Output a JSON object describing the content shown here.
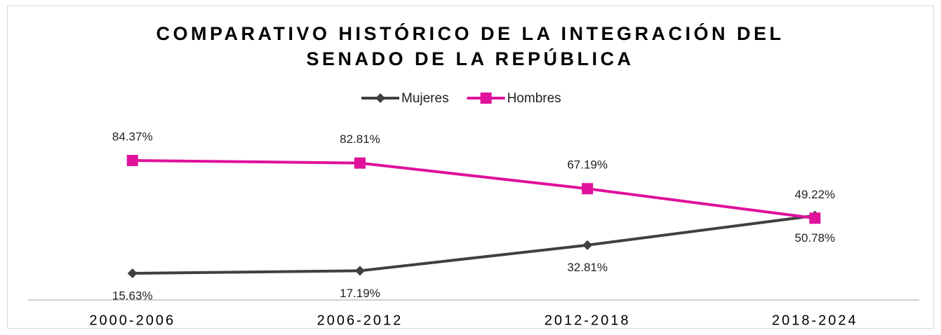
{
  "chart_data": {
    "type": "line",
    "title": "COMPARATIVO HISTÓRICO DE LA INTEGRACIÓN DEL SENADO DE LA REPÚBLICA",
    "categories": [
      "2000-2006",
      "2006-2012",
      "2012-2018",
      "2018-2024"
    ],
    "series": [
      {
        "name": "Mujeres",
        "color": "#404040",
        "marker": "diamond",
        "values": [
          15.63,
          17.19,
          32.81,
          50.78
        ],
        "value_labels": [
          "15.63%",
          "17.19%",
          "32.81%",
          "50.78%"
        ],
        "label_position": "below"
      },
      {
        "name": "Hombres",
        "color": "#e0119b",
        "marker": "square",
        "values": [
          84.37,
          82.81,
          67.19,
          49.22
        ],
        "value_labels": [
          "84.37%",
          "82.81%",
          "67.19%",
          "49.22%"
        ],
        "label_position": "above"
      }
    ],
    "ylim": [
      0,
      100
    ],
    "legend": "top"
  }
}
